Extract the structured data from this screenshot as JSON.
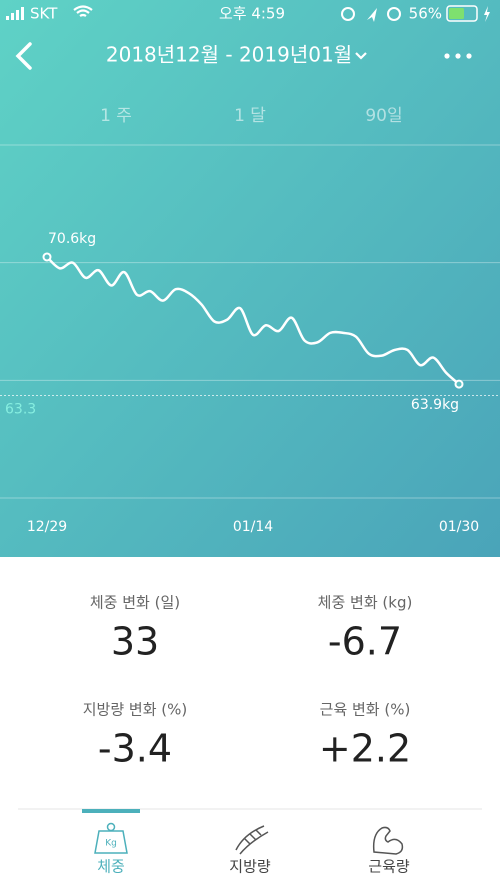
{
  "status_bar": {
    "carrier": "SKT",
    "time": "오후 4:59",
    "battery": "56%"
  },
  "header": {
    "title": "2018년12월 - 2019년01월"
  },
  "tabs": [
    "1 주",
    "1 달",
    "90일"
  ],
  "chart_data": {
    "type": "line",
    "categories": [
      "12/29",
      null,
      null,
      null,
      null,
      null,
      null,
      null,
      null,
      null,
      null,
      null,
      null,
      null,
      null,
      null,
      "01/14",
      null,
      null,
      null,
      null,
      null,
      null,
      null,
      null,
      null,
      null,
      null,
      null,
      null,
      null,
      null,
      "01/30"
    ],
    "values": [
      70.6,
      70.0,
      70.3,
      69.5,
      69.9,
      69.1,
      69.8,
      68.6,
      68.8,
      68.3,
      68.9,
      68.7,
      68.1,
      67.2,
      67.3,
      67.9,
      66.5,
      67.0,
      66.7,
      67.4,
      66.2,
      66.1,
      66.6,
      66.6,
      66.4,
      65.5,
      65.4,
      65.7,
      65.7,
      64.9,
      65.3,
      64.5,
      63.9
    ],
    "value_labels": [
      "70.6kg",
      null,
      null,
      null,
      null,
      null,
      null,
      null,
      null,
      null,
      null,
      null,
      null,
      null,
      null,
      null,
      null,
      null,
      null,
      null,
      null,
      null,
      null,
      null,
      null,
      null,
      null,
      null,
      null,
      null,
      null,
      null,
      "63.9kg"
    ],
    "target": 63.3,
    "color": "#ffffff",
    "ylim": [
      57.9,
      76.5
    ]
  },
  "stats": [
    {
      "label": "체중 변화 (일)",
      "value": 33
    },
    {
      "label": "체중 변화 (kg)",
      "value": -6.7
    },
    {
      "label": "지방량 변화 (%)",
      "value": -3.4
    },
    {
      "label": "근육 변화 (%)",
      "value": "+2.2"
    }
  ],
  "nav": [
    "체중",
    "지방량",
    "근육량"
  ]
}
